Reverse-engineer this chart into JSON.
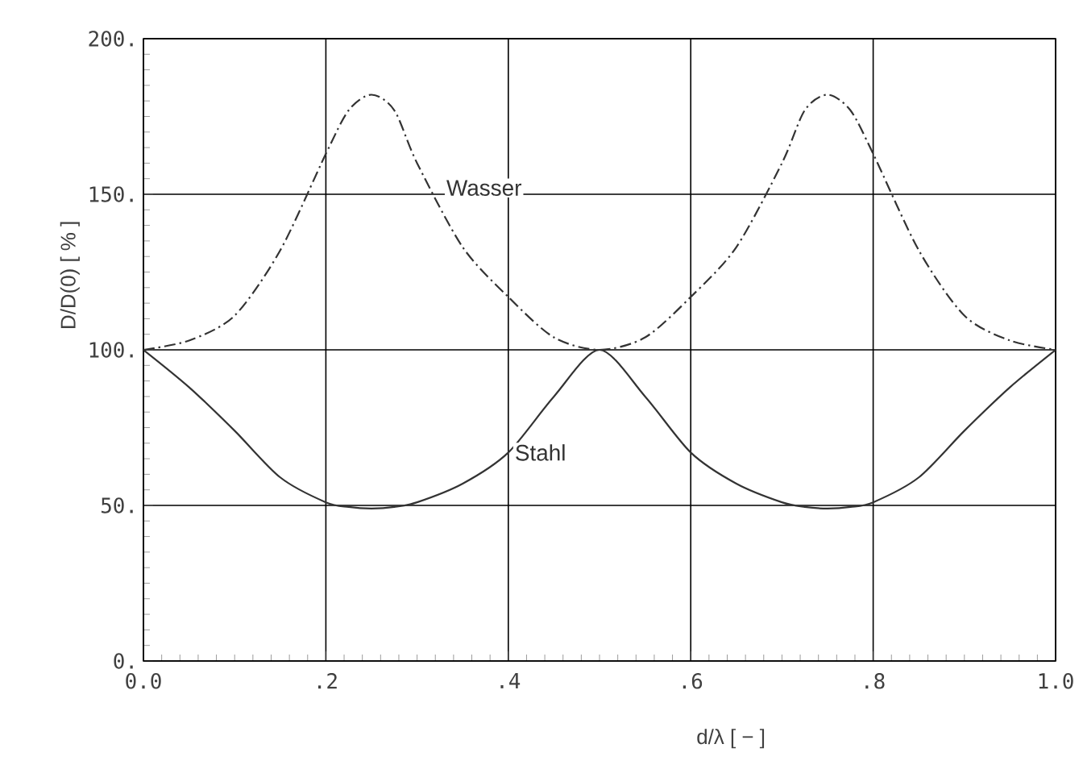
{
  "chart_data": {
    "type": "line",
    "xlabel": "d/λ     [  −  ]",
    "ylabel": "D/D(0)  [  %  ]",
    "series": [
      {
        "name": "Wasser",
        "color": "#333333",
        "line_style": "dashdot",
        "x": [
          0,
          0.05,
          0.1,
          0.15,
          0.2,
          0.225,
          0.25,
          0.275,
          0.3,
          0.35,
          0.4,
          0.45,
          0.5,
          0.55,
          0.6,
          0.65,
          0.7,
          0.725,
          0.75,
          0.775,
          0.8,
          0.85,
          0.9,
          0.95,
          1.0
        ],
        "values": [
          100,
          103,
          111,
          132,
          163,
          177,
          182,
          177,
          160,
          133,
          117,
          104,
          100,
          104,
          117,
          133,
          160,
          177,
          182,
          177,
          163,
          132,
          111,
          103,
          100
        ]
      },
      {
        "name": "Stahl",
        "color": "#333333",
        "line_style": "solid",
        "x": [
          0,
          0.05,
          0.1,
          0.15,
          0.2,
          0.225,
          0.25,
          0.275,
          0.3,
          0.35,
          0.4,
          0.45,
          0.5,
          0.55,
          0.6,
          0.65,
          0.7,
          0.725,
          0.75,
          0.775,
          0.8,
          0.85,
          0.9,
          0.95,
          1.0
        ],
        "values": [
          100,
          88,
          74,
          59,
          51,
          49.5,
          49,
          49.5,
          51,
          57,
          67,
          85,
          100,
          85,
          67,
          57,
          51,
          49.5,
          49,
          49.5,
          51,
          59,
          74,
          88,
          100
        ]
      }
    ],
    "xlim": [
      0,
      1
    ],
    "ylim": [
      0,
      200
    ],
    "xticks": [
      {
        "value": 0,
        "label": "0.0"
      },
      {
        "value": 0.2,
        "label": ".2"
      },
      {
        "value": 0.4,
        "label": ".4"
      },
      {
        "value": 0.6,
        "label": ".6"
      },
      {
        "value": 0.8,
        "label": ".8"
      },
      {
        "value": 1,
        "label": "1.0"
      }
    ],
    "yticks": [
      {
        "value": 0,
        "label": "0."
      },
      {
        "value": 50,
        "label": "50."
      },
      {
        "value": 100,
        "label": "100."
      },
      {
        "value": 150,
        "label": "150."
      },
      {
        "value": 200,
        "label": "200."
      }
    ],
    "grid": true,
    "legend": false,
    "marker": "none"
  }
}
